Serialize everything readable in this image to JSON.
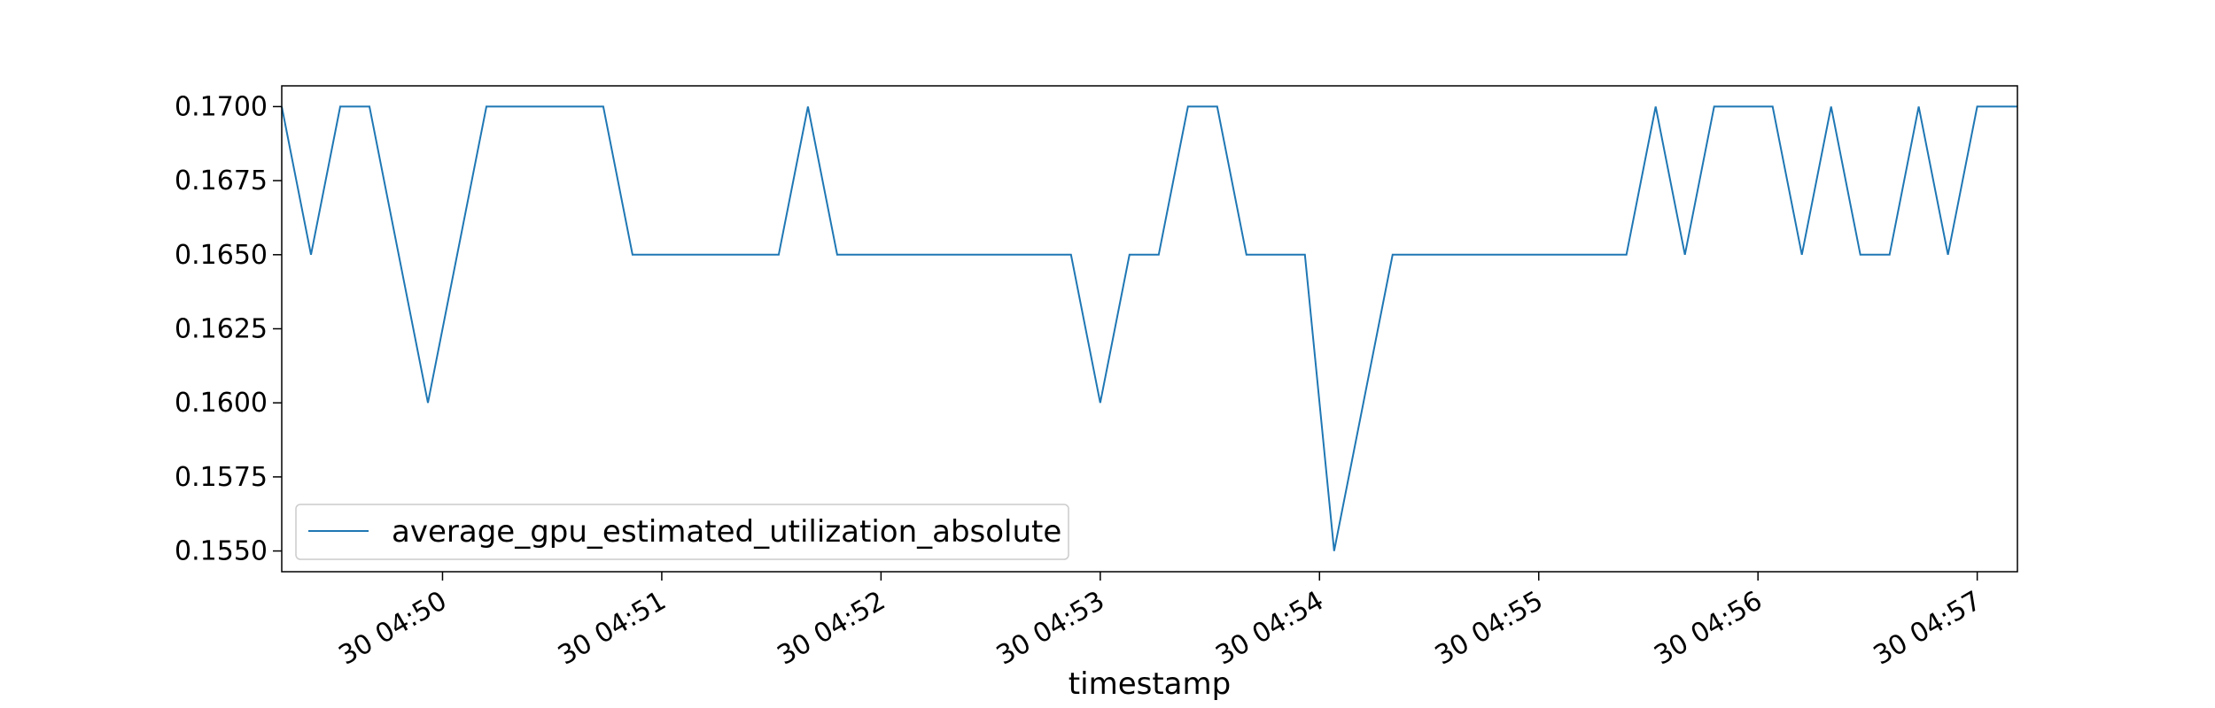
{
  "chart_data": {
    "type": "line",
    "title": "",
    "xlabel": "timestamp",
    "ylabel": "",
    "grid": false,
    "legend_position": "lower-left",
    "xlim": [
      "30 04:49:16",
      "30 04:57:11"
    ],
    "ylim": [
      0.1543,
      0.1707
    ],
    "x_ticks": [
      "30 04:50",
      "30 04:51",
      "30 04:52",
      "30 04:53",
      "30 04:54",
      "30 04:55",
      "30 04:56",
      "30 04:57"
    ],
    "y_ticks": [
      "0.1550",
      "0.1575",
      "0.1600",
      "0.1625",
      "0.1650",
      "0.1675",
      "0.1700"
    ],
    "series": [
      {
        "name": "average_gpu_estimated_utilization_absolute",
        "color": "#1f77b4",
        "x": [
          "30 04:49:16",
          "30 04:49:24",
          "30 04:49:32",
          "30 04:49:40",
          "30 04:49:48",
          "30 04:49:56",
          "30 04:50:04",
          "30 04:50:12",
          "30 04:50:20",
          "30 04:50:28",
          "30 04:50:36",
          "30 04:50:44",
          "30 04:50:52",
          "30 04:51:00",
          "30 04:51:08",
          "30 04:51:16",
          "30 04:51:24",
          "30 04:51:32",
          "30 04:51:40",
          "30 04:51:48",
          "30 04:51:56",
          "30 04:52:04",
          "30 04:52:12",
          "30 04:52:20",
          "30 04:52:28",
          "30 04:52:36",
          "30 04:52:44",
          "30 04:52:52",
          "30 04:53:00",
          "30 04:53:08",
          "30 04:53:16",
          "30 04:53:24",
          "30 04:53:32",
          "30 04:53:40",
          "30 04:53:48",
          "30 04:53:56",
          "30 04:54:04",
          "30 04:54:12",
          "30 04:54:20",
          "30 04:54:28",
          "30 04:54:36",
          "30 04:54:44",
          "30 04:54:52",
          "30 04:55:00",
          "30 04:55:08",
          "30 04:55:16",
          "30 04:55:24",
          "30 04:55:32",
          "30 04:55:40",
          "30 04:55:48",
          "30 04:55:56",
          "30 04:56:04",
          "30 04:56:12",
          "30 04:56:20",
          "30 04:56:28",
          "30 04:56:36",
          "30 04:56:44",
          "30 04:56:52",
          "30 04:57:00",
          "30 04:57:08",
          "30 04:57:11"
        ],
        "values": [
          0.17,
          0.165,
          0.17,
          0.17,
          0.165,
          0.16,
          0.165,
          0.17,
          0.17,
          0.17,
          0.17,
          0.17,
          0.165,
          0.165,
          0.165,
          0.165,
          0.165,
          0.165,
          0.17,
          0.165,
          0.165,
          0.165,
          0.165,
          0.165,
          0.165,
          0.165,
          0.165,
          0.165,
          0.16,
          0.165,
          0.165,
          0.17,
          0.17,
          0.165,
          0.165,
          0.165,
          0.155,
          0.16,
          0.165,
          0.165,
          0.165,
          0.165,
          0.165,
          0.165,
          0.165,
          0.165,
          0.165,
          0.17,
          0.165,
          0.17,
          0.17,
          0.17,
          0.165,
          0.17,
          0.165,
          0.165,
          0.17,
          0.165,
          0.17,
          0.17,
          0.17
        ]
      }
    ]
  }
}
